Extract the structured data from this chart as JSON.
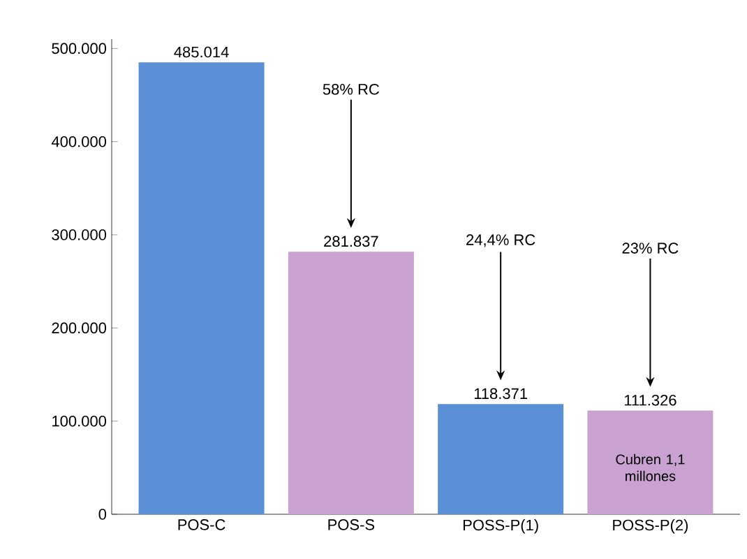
{
  "chart_data": {
    "type": "bar",
    "categories": [
      "POS-C",
      "POS-S",
      "POSS-P(1)",
      "POSS-P(2)"
    ],
    "values": [
      485014,
      281837,
      118371,
      111326
    ],
    "colors": [
      "#5b8fd6",
      "#c9a2d2",
      "#5b8fd6",
      "#c9a2d2"
    ],
    "value_labels": [
      "485.014",
      "281.837",
      "118.371",
      "111.326"
    ],
    "ylim": [
      0,
      510000
    ],
    "yticks": [
      0,
      {
        "value": 100000,
        "label": "100.000"
      },
      {
        "value": 200000,
        "label": "200.000"
      },
      {
        "value": 300000,
        "label": "300.000"
      },
      {
        "value": 400000,
        "label": "400.000"
      },
      {
        "value": 500000,
        "label": "500.000"
      }
    ],
    "grid": false,
    "annotations": [
      "58% RC",
      "24,4% RC",
      "23% RC",
      "Cubren 1,1 millones"
    ]
  }
}
